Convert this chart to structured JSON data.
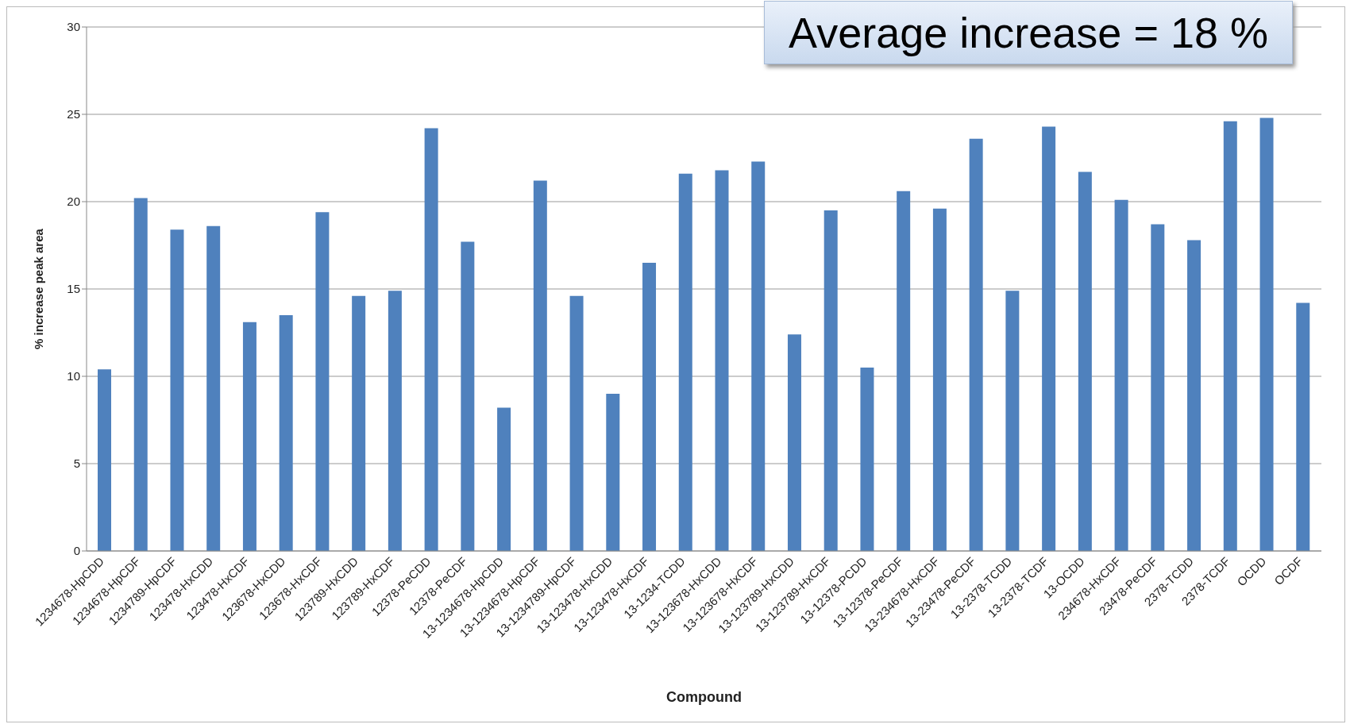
{
  "chart_data": {
    "type": "bar",
    "xlabel": "Compound",
    "ylabel": "% increase  peak area",
    "categories": [
      "1234678-HpCDD",
      "1234678-HpCDF",
      "1234789-HpCDF",
      "123478-HxCDD",
      "123478-HxCDF",
      "123678-HxCDD",
      "123678-HxCDF",
      "123789-HxCDD",
      "123789-HxCDF",
      "12378-PeCDD",
      "12378-PeCDF",
      "13-1234678-HpCDD",
      "13-1234678-HpCDF",
      "13-1234789-HpCDF",
      "13-123478-HxCDD",
      "13-123478-HxCDF",
      "13-1234-TCDD",
      "13-123678-HxCDD",
      "13-123678-HxCDF",
      "13-123789-HxCDD",
      "13-123789-HxCDF",
      "13-12378-PCDD",
      "13-12378-PeCDF",
      "13-234678-HxCDF",
      "13-23478-PeCDF",
      "13-2378-TCDD",
      "13-2378-TCDF",
      "13-OCDD",
      "234678-HxCDF",
      "23478-PeCDF",
      "2378-TCDD",
      "2378-TCDF",
      "OCDD",
      "OCDF"
    ],
    "values": [
      10.4,
      20.2,
      18.4,
      18.6,
      13.1,
      13.5,
      19.4,
      14.6,
      14.9,
      24.2,
      17.7,
      8.2,
      21.2,
      14.6,
      9.0,
      16.5,
      21.6,
      21.8,
      22.3,
      12.4,
      19.5,
      10.5,
      20.6,
      19.6,
      23.6,
      14.9,
      24.3,
      21.7,
      20.1,
      18.7,
      17.8,
      24.6,
      24.8,
      14.2
    ],
    "color": "#4f81bd",
    "ylim": [
      0,
      30
    ],
    "yticks": [
      0,
      5,
      10,
      15,
      20,
      25,
      30
    ],
    "grid": "y",
    "annotations": [
      "Average increase = 18 %"
    ]
  }
}
